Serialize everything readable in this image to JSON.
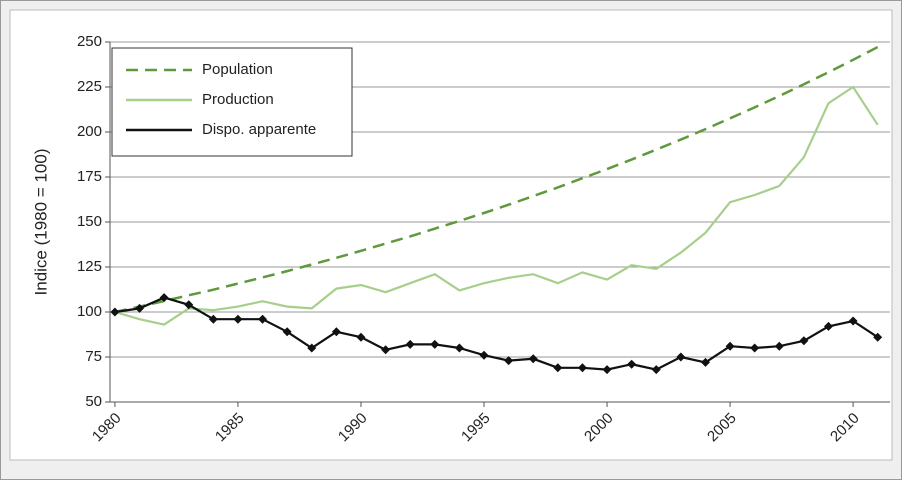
{
  "chart_data": {
    "type": "line",
    "ylabel": "Indice (1980 = 100)",
    "x": [
      1980,
      1981,
      1982,
      1983,
      1984,
      1985,
      1986,
      1987,
      1988,
      1989,
      1990,
      1991,
      1992,
      1993,
      1994,
      1995,
      1996,
      1997,
      1998,
      1999,
      2000,
      2001,
      2002,
      2003,
      2004,
      2005,
      2006,
      2007,
      2008,
      2009,
      2010,
      2011
    ],
    "series": [
      {
        "name": "Population",
        "color": "#5e9a3c",
        "dashed": true,
        "markers": false,
        "values": [
          100,
          103,
          106.1,
          109.3,
          112.4,
          115.8,
          119.2,
          122.7,
          126.4,
          130.1,
          134,
          138,
          142,
          146.3,
          150.6,
          155,
          159.6,
          164.4,
          169.2,
          174.3,
          179.4,
          184.7,
          190.2,
          195.8,
          201.6,
          207.6,
          213.7,
          220,
          226.5,
          233.2,
          240.1,
          247.2
        ]
      },
      {
        "name": "Production",
        "color": "#a6cf8c",
        "dashed": false,
        "markers": false,
        "values": [
          100,
          96,
          93,
          102,
          101,
          103,
          106,
          103,
          102,
          113,
          115,
          111,
          116,
          121,
          112,
          116,
          119,
          121,
          116,
          122,
          118,
          126,
          124,
          133,
          144,
          161,
          165,
          170,
          186,
          216,
          225,
          204
        ]
      },
      {
        "name": "Dispo. apparente",
        "color": "#111111",
        "dashed": false,
        "markers": true,
        "values": [
          100,
          102,
          108,
          104,
          96,
          96,
          96,
          89,
          80,
          89,
          86,
          79,
          82,
          82,
          80,
          76,
          73,
          74,
          69,
          69,
          68,
          71,
          68,
          75,
          72,
          81,
          80,
          81,
          84,
          92,
          95,
          86
        ]
      }
    ],
    "xlim": [
      1979.8,
      2011.5
    ],
    "xticks": [
      1980,
      1985,
      1990,
      1995,
      2000,
      2005,
      2010
    ],
    "ylim": [
      50,
      250
    ],
    "yticks": [
      50,
      75,
      100,
      125,
      150,
      175,
      200,
      225,
      250
    ],
    "grid": true,
    "legend": "upper-left"
  }
}
